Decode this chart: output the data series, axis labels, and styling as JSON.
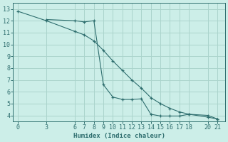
{
  "line1_x": [
    0,
    3,
    6,
    7,
    8,
    9,
    10,
    11,
    12,
    13,
    14,
    15,
    16,
    17,
    18,
    20,
    21
  ],
  "line1_y": [
    12.8,
    12.0,
    11.1,
    10.8,
    10.3,
    9.5,
    8.6,
    7.8,
    7.0,
    6.3,
    5.5,
    5.0,
    4.6,
    4.3,
    4.1,
    3.85,
    3.7
  ],
  "line2_x": [
    3,
    6,
    7,
    8,
    9,
    10,
    11,
    12,
    13,
    14,
    15,
    16,
    17,
    18,
    20,
    21
  ],
  "line2_y": [
    12.1,
    12.0,
    11.9,
    12.0,
    6.6,
    5.55,
    5.35,
    5.35,
    5.4,
    4.1,
    3.95,
    3.95,
    3.95,
    4.1,
    4.0,
    3.7
  ],
  "color": "#2e6e6e",
  "bg_color": "#cceee8",
  "grid_color": "#aad4cc",
  "xlabel": "Humidex (Indice chaleur)",
  "ylim": [
    3.5,
    13.5
  ],
  "xlim": [
    -0.5,
    21.8
  ],
  "yticks": [
    4,
    5,
    6,
    7,
    8,
    9,
    10,
    11,
    12,
    13
  ],
  "xticks": [
    0,
    3,
    6,
    7,
    8,
    9,
    10,
    11,
    12,
    13,
    14,
    15,
    16,
    17,
    18,
    20,
    21
  ]
}
